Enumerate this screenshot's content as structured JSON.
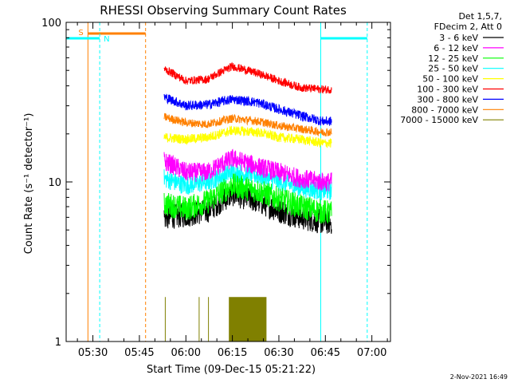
{
  "chart_data": {
    "type": "line",
    "title": "RHESSI Observing Summary Count Rates",
    "xlabel": "Start Time (09-Dec-15 05:21:22)",
    "ylabel": "Count Rate (s⁻¹ detector⁻¹)",
    "x_ticks": [
      "05:30",
      "05:45",
      "06:00",
      "06:15",
      "06:30",
      "06:45",
      "07:00"
    ],
    "x_tick_minutes": [
      330,
      345,
      360,
      375,
      390,
      405,
      420
    ],
    "xlim_minutes": [
      321.37,
      426
    ],
    "y_scale": "log",
    "ylim": [
      1,
      100
    ],
    "y_tick_labels": [
      "1",
      "10",
      "100"
    ],
    "y_tick_values": [
      1,
      10,
      100
    ],
    "legend_header": [
      "Det 1,5,7,",
      "FDecim 2, Att 0"
    ],
    "legend_placement": "outside-right",
    "footer_date": "2-Nov-2021 16:49",
    "series": [
      {
        "name": "3 - 6 keV",
        "color": "#000000",
        "x": [
          353,
          360,
          367,
          375,
          383,
          390,
          397,
          404,
          407
        ],
        "y": [
          6.0,
          6.2,
          6.6,
          8.4,
          7.6,
          6.6,
          6.0,
          5.6,
          5.6
        ]
      },
      {
        "name": "6 - 12 keV",
        "color": "#ff00ff",
        "x": [
          353,
          360,
          367,
          375,
          383,
          390,
          397,
          404,
          407
        ],
        "y": [
          13.5,
          11.5,
          11.5,
          14.0,
          12.5,
          11.5,
          10.5,
          10.0,
          10.0
        ]
      },
      {
        "name": "12 - 25 keV",
        "color": "#00ff00",
        "x": [
          353,
          360,
          367,
          375,
          383,
          390,
          397,
          404,
          407
        ],
        "y": [
          7.3,
          6.8,
          7.5,
          9.5,
          8.8,
          7.8,
          7.0,
          6.5,
          6.4
        ]
      },
      {
        "name": "25 - 50 keV",
        "color": "#00ffff",
        "x": [
          353,
          360,
          367,
          375,
          383,
          390,
          397,
          404,
          407
        ],
        "y": [
          10.5,
          9.5,
          10.0,
          11.5,
          11.0,
          10.0,
          9.2,
          8.8,
          8.8
        ]
      },
      {
        "name": "50 - 100 keV",
        "color": "#ffff00",
        "x": [
          353,
          360,
          367,
          375,
          383,
          390,
          397,
          404,
          407
        ],
        "y": [
          19.0,
          18.5,
          19.0,
          21.0,
          20.5,
          19.0,
          18.5,
          17.5,
          17.5
        ]
      },
      {
        "name": "100 - 300 keV",
        "color": "#ff0000",
        "x": [
          353,
          360,
          367,
          375,
          383,
          390,
          397,
          404,
          407
        ],
        "y": [
          51.0,
          43.0,
          44.0,
          53.0,
          48.0,
          43.0,
          39.0,
          38.0,
          38.0
        ]
      },
      {
        "name": "300 - 800 keV",
        "color": "#0000ff",
        "x": [
          353,
          360,
          367,
          375,
          383,
          390,
          397,
          404,
          407
        ],
        "y": [
          34.0,
          30.0,
          30.5,
          33.0,
          31.5,
          28.5,
          26.0,
          24.0,
          24.0
        ]
      },
      {
        "name": "800 - 7000 keV",
        "color": "#ff8000",
        "x": [
          353,
          360,
          367,
          375,
          383,
          390,
          397,
          404,
          407
        ],
        "y": [
          25.5,
          23.5,
          23.0,
          25.0,
          24.0,
          22.5,
          21.5,
          20.5,
          20.5
        ]
      },
      {
        "name": "7000 - 15000 keV",
        "color": "#808000",
        "x": [
          353,
          356,
          374,
          377,
          380,
          383,
          386
        ],
        "y": [
          1.0,
          1.0,
          1.9,
          1.9,
          1.9,
          1.9,
          1.9
        ]
      }
    ],
    "annotations": [
      {
        "label": "S",
        "color": "#ff8000"
      },
      {
        "label": "N",
        "color": "#00ffff"
      }
    ]
  }
}
